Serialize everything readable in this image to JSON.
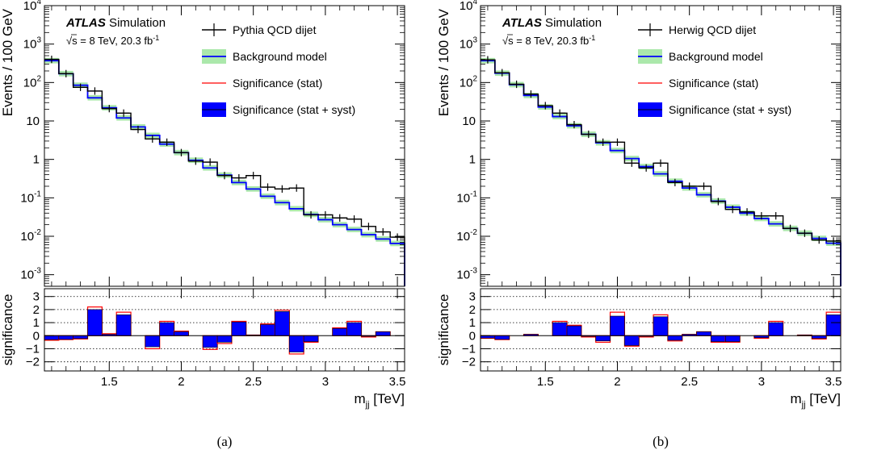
{
  "chart_data": [
    {
      "type": "line",
      "caption": "(a)",
      "atlas_label": "ATLAS",
      "atlas_sub": "Simulation",
      "info": "√s = 8 TeV, 20.3 fb",
      "info_sup": "-1",
      "ylabel": "Events / 100 GeV",
      "ratio_ylabel": "significance",
      "xlabel_main": "m",
      "xlabel_sub": "jj",
      "xlabel_unit": "[TeV]",
      "xlim": [
        1.05,
        3.55
      ],
      "ylim_log": [
        0.0005,
        10000
      ],
      "ratio_ylim": [
        -2.7,
        3.6
      ],
      "x_ticks": [
        1.5,
        2,
        2.5,
        3,
        3.5
      ],
      "x_tick_labels": [
        "1.5",
        "2",
        "2.5",
        "3",
        "3.5"
      ],
      "y_tick_labels": [
        {
          "base": "10",
          "exp": "-3",
          "value": 0.001
        },
        {
          "base": "10",
          "exp": "-2",
          "value": 0.01
        },
        {
          "base": "10",
          "exp": "-1",
          "value": 0.1
        },
        {
          "base": "1",
          "exp": "",
          "value": 1
        },
        {
          "base": "10",
          "exp": "",
          "value": 10
        },
        {
          "base": "10",
          "exp": "2",
          "value": 100
        },
        {
          "base": "10",
          "exp": "3",
          "value": 1000
        },
        {
          "base": "10",
          "exp": "4",
          "value": 10000
        }
      ],
      "ratio_ticks": [
        3,
        2,
        1,
        0,
        -1,
        -2
      ],
      "ratio_tick_labels": [
        "3",
        "2",
        "1",
        "0",
        "−1",
        "−2"
      ],
      "legend": [
        {
          "label": "Pythia QCD dijet",
          "style": "data"
        },
        {
          "label": "Background model",
          "style": "band"
        },
        {
          "label": "Significance (stat)",
          "style": "redline"
        },
        {
          "label": "Significance (stat + syst)",
          "style": "bluebox"
        }
      ],
      "colors": {
        "background": "#0000ff",
        "band": "#8fe08f",
        "stat": "#ff0000",
        "syst": "#0000ff",
        "data": "#000000"
      },
      "bin_edges": [
        1.05,
        1.15,
        1.25,
        1.35,
        1.45,
        1.55,
        1.65,
        1.75,
        1.85,
        1.95,
        2.05,
        2.15,
        2.25,
        2.35,
        2.45,
        2.55,
        2.65,
        2.75,
        2.85,
        2.95,
        3.05,
        3.15,
        3.25,
        3.35,
        3.45,
        3.55
      ],
      "data": [
        400,
        170,
        75,
        60,
        21,
        16,
        6,
        3.4,
        2.8,
        1.5,
        0.9,
        0.85,
        0.38,
        0.33,
        0.38,
        0.19,
        0.17,
        0.18,
        0.036,
        0.036,
        0.03,
        0.028,
        0.018,
        0.013,
        0.0095
      ],
      "background": [
        370,
        170,
        85,
        40,
        22,
        12,
        7,
        4.2,
        2.5,
        1.5,
        0.95,
        0.6,
        0.39,
        0.25,
        0.17,
        0.11,
        0.075,
        0.052,
        0.037,
        0.027,
        0.02,
        0.015,
        0.011,
        0.0085,
        0.0065
      ],
      "significance_stat": [
        -0.35,
        -0.3,
        -0.25,
        2.2,
        0.15,
        1.8,
        0,
        -1,
        1.1,
        0.35,
        0,
        -1.05,
        -0.6,
        1.1,
        0.05,
        0.9,
        1.95,
        -1.4,
        -0.5,
        0,
        0.6,
        1.1,
        -0.1,
        0.3,
        0
      ],
      "significance_syst": [
        -0.3,
        -0.28,
        -0.22,
        2.0,
        0.1,
        1.6,
        0,
        -0.85,
        1.0,
        0.3,
        0,
        -0.9,
        -0.5,
        1.05,
        0.05,
        0.85,
        1.85,
        -1.25,
        -0.45,
        0,
        0.55,
        1.0,
        -0.05,
        0.3,
        0
      ]
    },
    {
      "type": "line",
      "caption": "(b)",
      "atlas_label": "ATLAS",
      "atlas_sub": "Simulation",
      "info": "√s = 8 TeV, 20.3 fb",
      "info_sup": "-1",
      "ylabel": "Events / 100 GeV",
      "ratio_ylabel": "significance",
      "xlabel_main": "m",
      "xlabel_sub": "jj",
      "xlabel_unit": "[TeV]",
      "xlim": [
        1.05,
        3.55
      ],
      "ylim_log": [
        0.0005,
        10000
      ],
      "ratio_ylim": [
        -2.7,
        3.6
      ],
      "x_ticks": [
        1.5,
        2,
        2.5,
        3,
        3.5
      ],
      "x_tick_labels": [
        "1.5",
        "2",
        "2.5",
        "3",
        "3.5"
      ],
      "y_tick_labels": [
        {
          "base": "10",
          "exp": "-3",
          "value": 0.001
        },
        {
          "base": "10",
          "exp": "-2",
          "value": 0.01
        },
        {
          "base": "10",
          "exp": "-1",
          "value": 0.1
        },
        {
          "base": "1",
          "exp": "",
          "value": 1
        },
        {
          "base": "10",
          "exp": "",
          "value": 10
        },
        {
          "base": "10",
          "exp": "2",
          "value": 100
        },
        {
          "base": "10",
          "exp": "3",
          "value": 1000
        },
        {
          "base": "10",
          "exp": "4",
          "value": 10000
        }
      ],
      "ratio_ticks": [
        3,
        2,
        1,
        0,
        -1,
        -2
      ],
      "ratio_tick_labels": [
        "3",
        "2",
        "1",
        "0",
        "−1",
        "−2"
      ],
      "legend": [
        {
          "label": "Herwig QCD dijet",
          "style": "data"
        },
        {
          "label": "Background model",
          "style": "band"
        },
        {
          "label": "Significance (stat)",
          "style": "redline"
        },
        {
          "label": "Significance (stat + syst)",
          "style": "bluebox"
        }
      ],
      "colors": {
        "background": "#0000ff",
        "band": "#8fe08f",
        "stat": "#ff0000",
        "syst": "#0000ff",
        "data": "#000000"
      },
      "bin_edges": [
        1.05,
        1.15,
        1.25,
        1.35,
        1.45,
        1.55,
        1.65,
        1.75,
        1.85,
        1.95,
        2.05,
        2.15,
        2.25,
        2.35,
        2.45,
        2.55,
        2.65,
        2.75,
        2.85,
        2.95,
        3.05,
        3.15,
        3.25,
        3.35,
        3.45,
        3.55
      ],
      "data": [
        390,
        180,
        90,
        50,
        25,
        16,
        8,
        4.5,
        2.8,
        2.8,
        0.8,
        0.6,
        0.8,
        0.25,
        0.2,
        0.2,
        0.08,
        0.05,
        0.043,
        0.034,
        0.034,
        0.016,
        0.012,
        0.008,
        0.0075
      ],
      "background": [
        370,
        175,
        88,
        46,
        23,
        13,
        7.5,
        4.5,
        2.7,
        1.7,
        1.05,
        0.65,
        0.42,
        0.27,
        0.18,
        0.12,
        0.082,
        0.057,
        0.04,
        0.029,
        0.021,
        0.016,
        0.012,
        0.0088,
        0.0066
      ],
      "significance_stat": [
        -0.2,
        -0.3,
        0,
        0.1,
        0,
        1.1,
        0.8,
        -0.1,
        -0.5,
        1.8,
        -0.8,
        -0.1,
        1.6,
        -0.4,
        0.1,
        0.3,
        -0.5,
        -0.5,
        0,
        -0.2,
        1.1,
        0,
        0.05,
        -0.25,
        1.8
      ],
      "significance_syst": [
        -0.18,
        -0.28,
        0,
        0.1,
        0,
        1.0,
        0.75,
        -0.05,
        -0.4,
        1.5,
        -0.75,
        -0.05,
        1.45,
        -0.35,
        0.1,
        0.3,
        -0.45,
        -0.45,
        0,
        -0.15,
        1.0,
        0,
        0.05,
        -0.2,
        1.6
      ]
    }
  ]
}
